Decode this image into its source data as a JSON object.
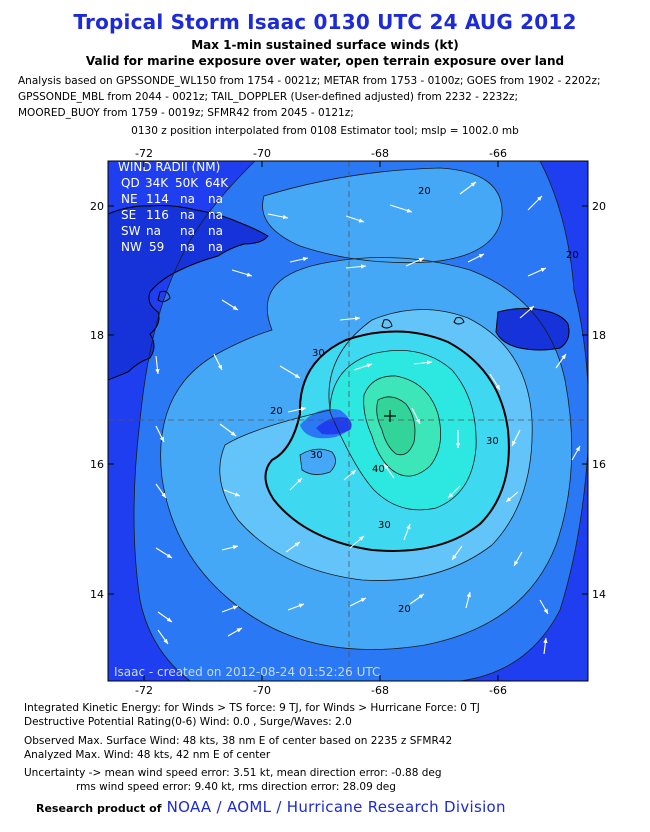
{
  "title": "Tropical Storm Isaac 0130 UTC 24 AUG 2012",
  "subtitle1": "Max 1-min sustained surface winds (kt)",
  "subtitle2": "Valid for marine exposure over water, open terrain exposure over land",
  "analysis_lines": [
    "Analysis based on GPSSONDE_WL150 from 1754 - 0021z; METAR from 1753 - 0100z; GOES from 1902 - 2202z;",
    "GPSSONDE_MBL from 2044 - 0021z; TAIL_DOPPLER (User-defined adjusted) from 2232 - 2232z;",
    "MOORED_BUOY from 1759 - 0019z; SFMR42 from 2045 - 0121z;"
  ],
  "position_note": "0130 z position interpolated from 0108 Estimator tool; mslp = 1002.0 mb",
  "map": {
    "lon_ticks": [
      "-72",
      "-70",
      "-68",
      "-66"
    ],
    "lat_ticks": [
      "20",
      "18",
      "16",
      "14"
    ],
    "wind_radii": {
      "header": "WIND RADII (NM)",
      "columns": [
        "QD",
        "34K",
        "50K",
        "64K"
      ],
      "rows": [
        [
          "NE",
          "114",
          "na",
          "na"
        ],
        [
          "SE",
          "116",
          "na",
          "na"
        ],
        [
          "SW",
          "na",
          "na",
          "na"
        ],
        [
          "NW",
          "59",
          "na",
          "na"
        ]
      ]
    },
    "contour_labels": [
      "20",
      "20",
      "20",
      "30",
      "30",
      "30",
      "40",
      "20",
      "30"
    ],
    "created_text": "Isaac - created on 2012-08-24 01:52:26 UTC",
    "colors": {
      "level_0": "#1f3ef0",
      "level_10": "#2a78f4",
      "level_20": "#45a8f7",
      "level_25": "#62c4f9",
      "level_30": "#3ed8f0",
      "level_35": "#2de8e0",
      "level_40": "#3ce6b8",
      "level_45": "#32d49a",
      "land": "#1533d8"
    }
  },
  "info": {
    "ike": "Integrated Kinetic Energy: for Winds > TS force: 9 TJ, for Winds > Hurricane Force: 0 TJ",
    "dpr": "Destructive Potential Rating(0-6)   Wind: 0.0 , Surge/Waves: 2.0",
    "observed": "Observed Max. Surface Wind: 48 kts, 38 nm E of center based on 2235 z SFMR42",
    "analyzed": "Analyzed Max. Wind: 48 kts, 42 nm  E of center",
    "uncertainty1": "Uncertainty -> mean wind speed error: 3.51 kt, mean direction error:  -0.88 deg",
    "uncertainty2": "rms wind speed error: 9.40 kt, rms direction error: 28.09 deg"
  },
  "footer": {
    "prefix": "Research product of",
    "link": "NOAA / AOML / Hurricane Research Division"
  }
}
